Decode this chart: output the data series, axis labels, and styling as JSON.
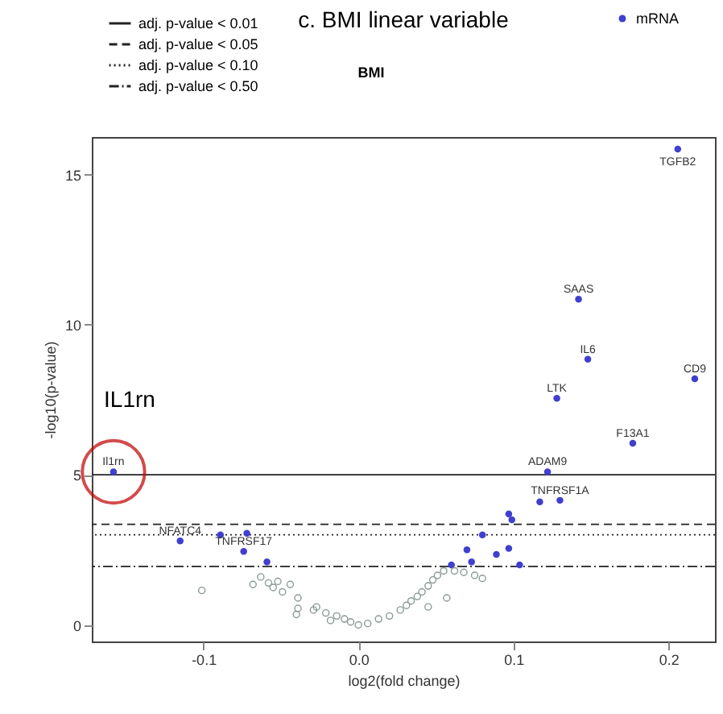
{
  "chart_data": {
    "type": "scatter",
    "title": "c. BMI linear variable",
    "subtitle": "BMI",
    "xlabel": "log2(fold change)",
    "ylabel": "-log10(p-value)",
    "xlim": [
      -0.172,
      0.23
    ],
    "ylim": [
      -0.55,
      16.25
    ],
    "xticks": [
      -0.1,
      {
        "value": 0,
        "label": "0.0"
      },
      0.1,
      0.2
    ],
    "yticks": [
      0,
      5,
      10,
      15
    ],
    "grid": false,
    "legend": "top",
    "marker": "circle",
    "series": [
      {
        "name": "mRNA",
        "color": "#3f3fd0",
        "x": [
          0.206,
          0.142,
          0.148,
          0.217,
          0.128,
          0.177,
          0.122,
          -0.158,
          0.117,
          0.13,
          -0.089,
          -0.072,
          -0.115,
          -0.074,
          -0.059,
          0.097,
          0.099,
          0.08,
          0.097,
          0.07,
          0.104,
          0.073,
          0.06,
          0.089
        ],
        "values": [
          15.85,
          10.85,
          8.85,
          8.2,
          7.55,
          6.05,
          5.1,
          5.1,
          4.1,
          4.15,
          3.0,
          3.05,
          2.8,
          2.45,
          2.1,
          3.7,
          3.5,
          3.0,
          2.55,
          2.5,
          2.0,
          2.1,
          2.0,
          2.35
        ]
      },
      {
        "color": "#8a9a96",
        "x": [
          -0.101,
          -0.063,
          -0.058,
          -0.052,
          -0.044,
          -0.049,
          -0.039,
          -0.04,
          -0.027,
          -0.029,
          -0.021,
          -0.014,
          -0.009,
          -0.005,
          0,
          0.006,
          0.013,
          0.02,
          0.027,
          0.031,
          0.034,
          0.038,
          0.041,
          0.045,
          0.048,
          0.051,
          0.055,
          0.062,
          0.068,
          0.075,
          0.08,
          0.057,
          0.045,
          -0.018,
          -0.039,
          -0.055,
          -0.068
        ],
        "values": [
          1.15,
          1.6,
          1.4,
          1.45,
          1.35,
          1.1,
          0.9,
          0.35,
          0.6,
          0.5,
          0.4,
          0.3,
          0.2,
          0.1,
          0,
          0.05,
          0.2,
          0.3,
          0.5,
          0.65,
          0.8,
          0.95,
          1.1,
          1.3,
          1.5,
          1.65,
          1.8,
          1.8,
          1.75,
          1.65,
          1.55,
          0.9,
          0.6,
          0.15,
          0.55,
          1.25,
          1.35
        ]
      }
    ],
    "ref_lines": [
      {
        "axis": "y",
        "value": 5,
        "label": "adj. p-value < 0.01",
        "line_style": "solid"
      },
      {
        "axis": "y",
        "value": 3.35,
        "label": "adj. p-value < 0.05",
        "line_style": "dashed"
      },
      {
        "axis": "y",
        "value": 3.0,
        "label": "adj. p-value < 0.10",
        "line_style": "dotted"
      },
      {
        "axis": "y",
        "value": 1.95,
        "label": "adj. p-value < 0.50",
        "line_style": "dashdot"
      }
    ],
    "annotations": [
      {
        "text": "IL1rn",
        "x": -0.158,
        "y": 5.1
      },
      {
        "text": "TGFB2",
        "x": 0.206,
        "y": 15.85
      },
      {
        "text": "SAAS",
        "x": 0.142,
        "y": 10.85
      },
      {
        "text": "IL6",
        "x": 0.148,
        "y": 8.85
      },
      {
        "text": "CD9",
        "x": 0.217,
        "y": 8.2
      },
      {
        "text": "LTK",
        "x": 0.128,
        "y": 7.55
      },
      {
        "text": "F13A1",
        "x": 0.177,
        "y": 6.05
      },
      {
        "text": "ADAM9",
        "x": 0.122,
        "y": 5.1
      },
      {
        "text": "Il1rn",
        "x": -0.158,
        "y": 5.1
      },
      {
        "text": "TNFRSF1A",
        "x": 0.13,
        "y": 4.15
      },
      {
        "text": "NFATC4",
        "x": -0.115,
        "y": 2.8
      },
      {
        "text": "TNFRSF17",
        "x": -0.074,
        "y": 2.45
      }
    ]
  }
}
